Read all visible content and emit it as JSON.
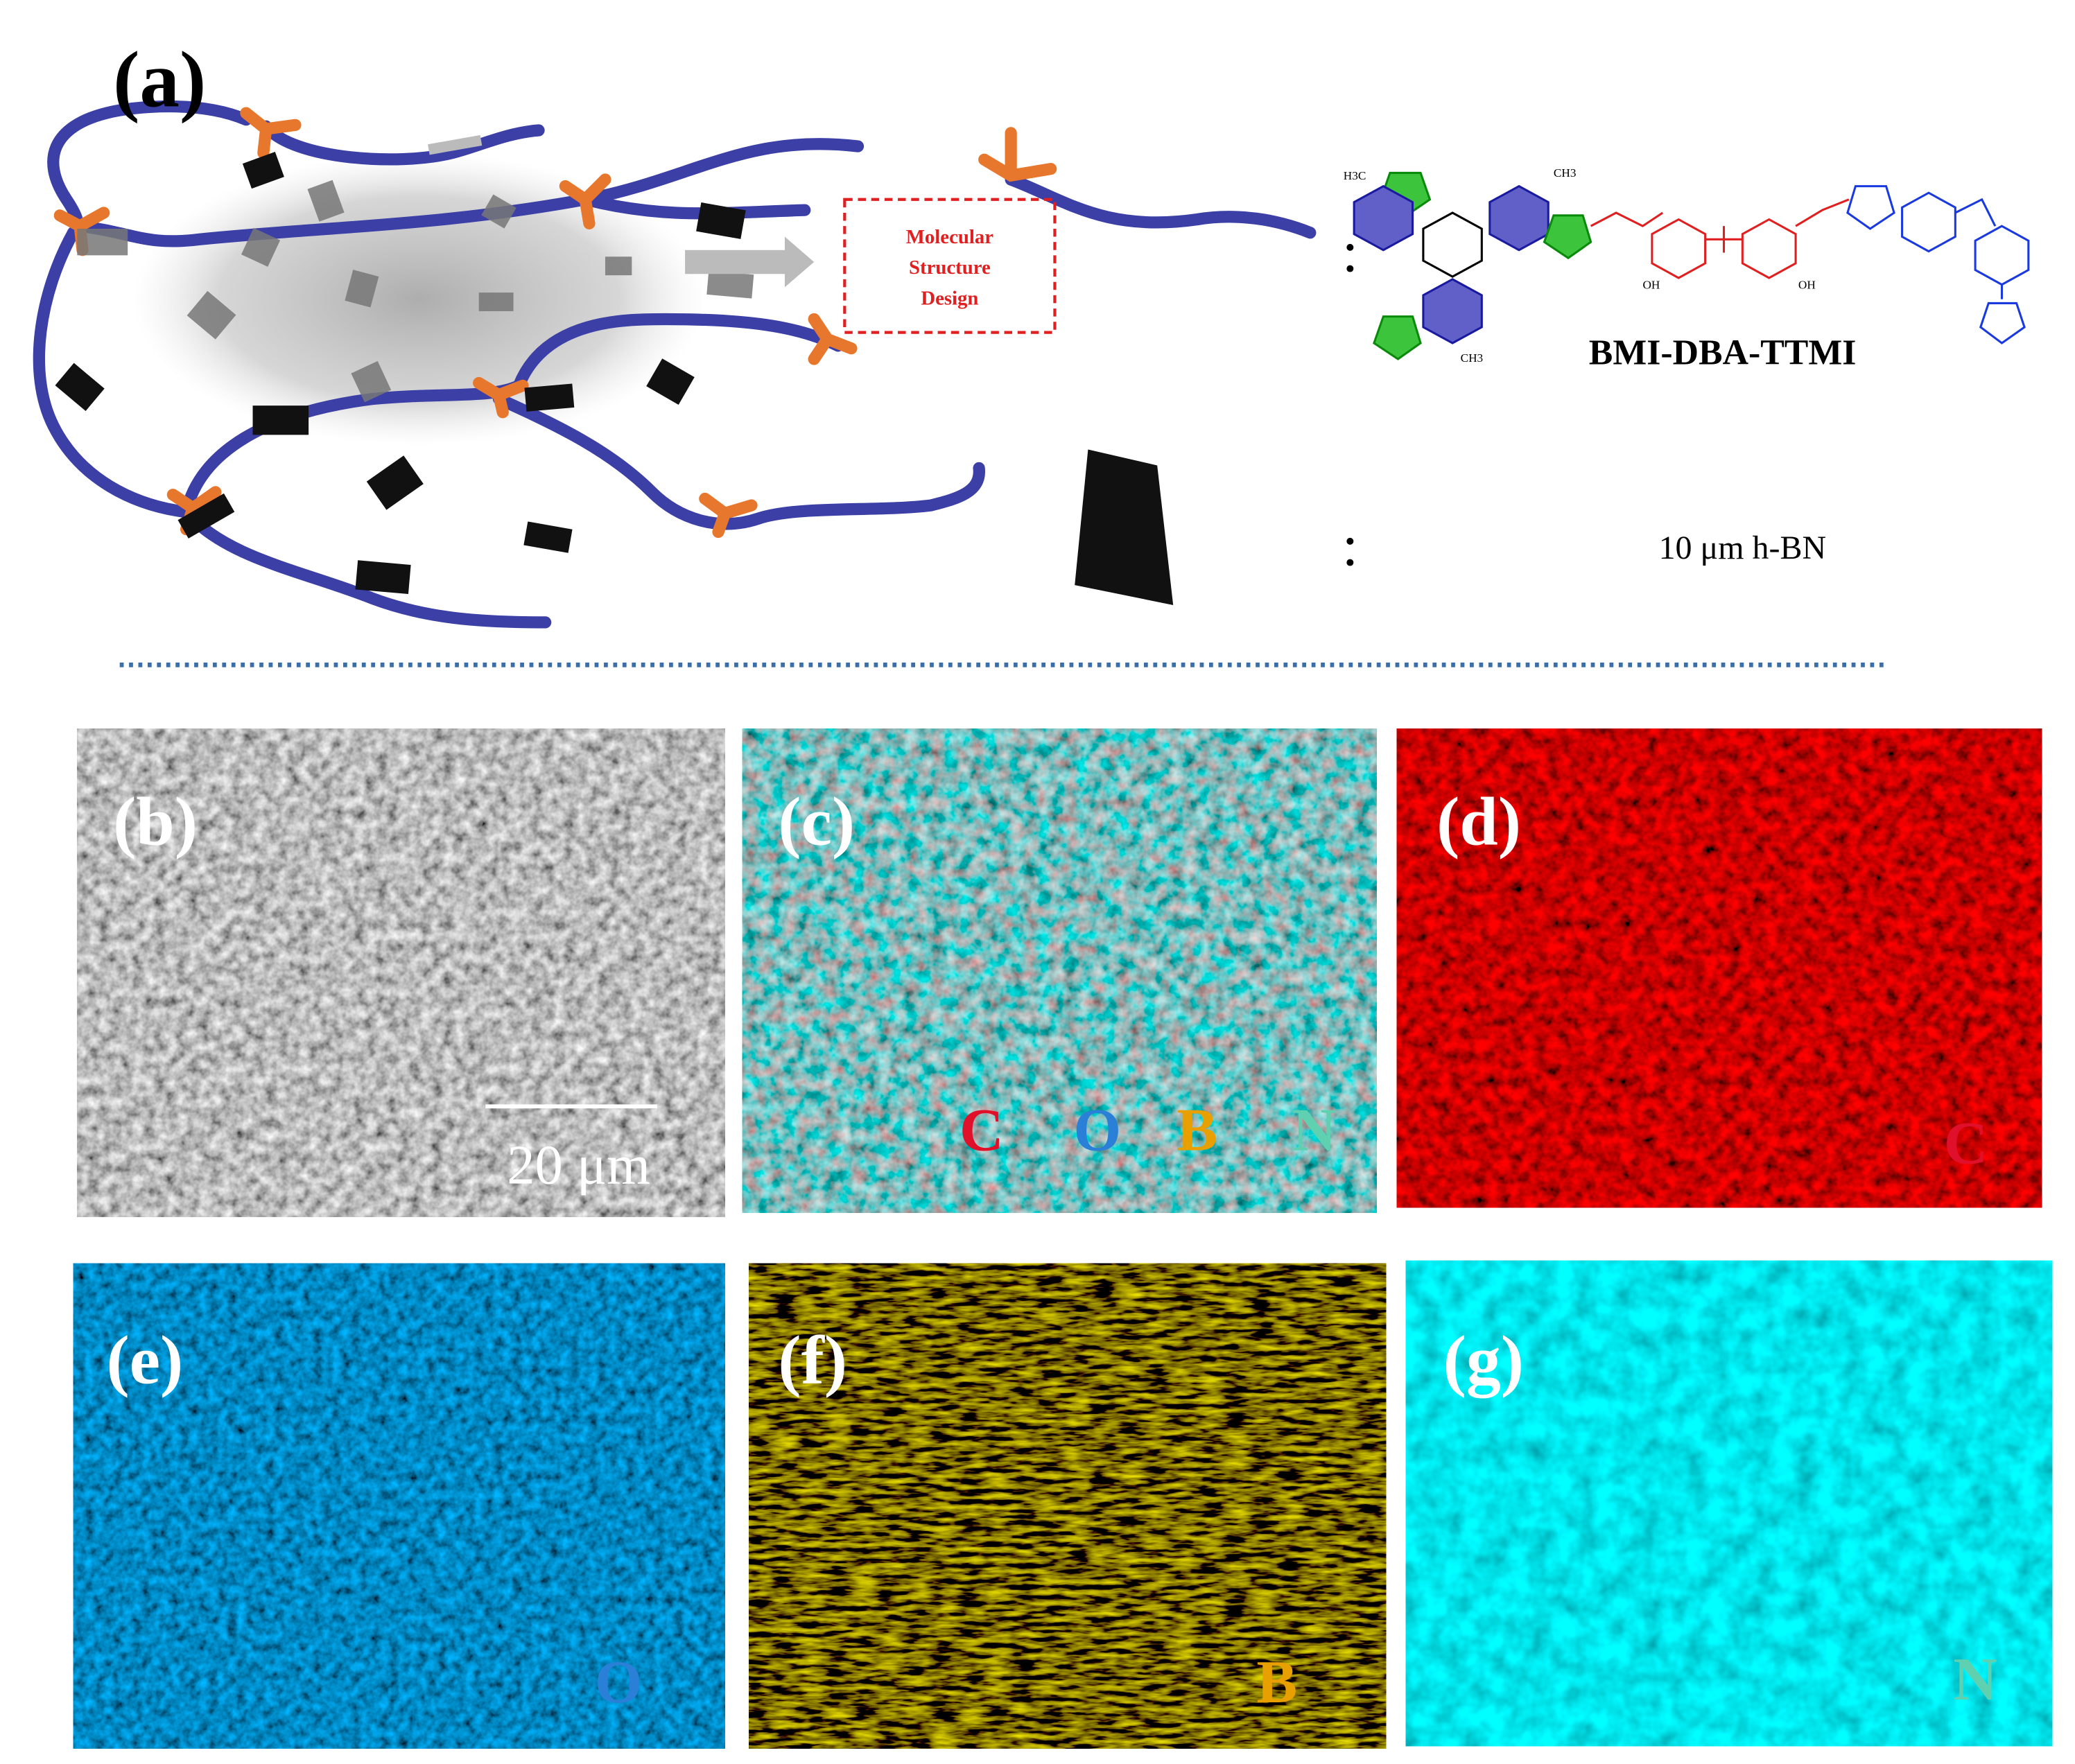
{
  "panel_a": {
    "label": "(a)",
    "design_box": [
      "Molecular",
      "Structure",
      "Design"
    ],
    "molecule_name": "BMI-DBA-TTMI",
    "filler_name": "10 μm h-BN",
    "structure_labels": [
      "H3C",
      "CH3",
      "OH",
      "OH",
      "CH3"
    ]
  },
  "panels": [
    {
      "label": "(b)",
      "scale_bar": "20 μm"
    },
    {
      "label": "(c)",
      "elements": [
        "C",
        "O",
        "B",
        "N"
      ]
    },
    {
      "label": "(d)",
      "element": "C"
    },
    {
      "label": "(e)",
      "element": "O"
    },
    {
      "label": "(f)",
      "element": "B"
    },
    {
      "label": "(g)",
      "element": "N"
    }
  ]
}
